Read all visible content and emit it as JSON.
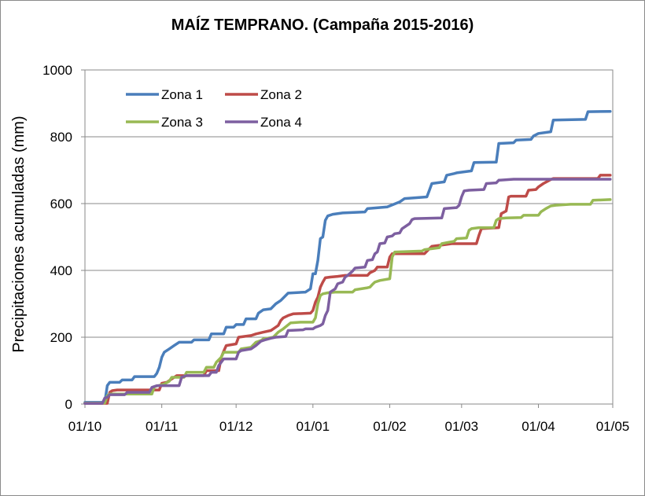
{
  "chart_data": {
    "type": "line",
    "title": "MAÍZ TEMPRANO. (Campaña 2015-2016)",
    "xlabel": "",
    "ylabel": "Precipitaciones acumuladas  (mm)",
    "ylim": [
      0,
      1000
    ],
    "yticks": [
      0,
      200,
      400,
      600,
      800,
      1000
    ],
    "xlim": [
      0,
      212
    ],
    "xticks": [
      {
        "label": "01/10",
        "day": 0
      },
      {
        "label": "01/11",
        "day": 31
      },
      {
        "label": "01/12",
        "day": 61
      },
      {
        "label": "01/01",
        "day": 92
      },
      {
        "label": "01/02",
        "day": 123
      },
      {
        "label": "01/03",
        "day": 152
      },
      {
        "label": "01/04",
        "day": 183
      },
      {
        "label": "01/05",
        "day": 213
      }
    ],
    "grid": "horizontal",
    "legend_position": "top-left",
    "series": [
      {
        "name": "Zona 1",
        "color": "#4a7ebb",
        "points": [
          [
            0,
            5
          ],
          [
            8,
            5
          ],
          [
            9,
            55
          ],
          [
            10,
            65
          ],
          [
            14,
            65
          ],
          [
            15,
            72
          ],
          [
            19,
            72
          ],
          [
            20,
            82
          ],
          [
            28,
            82
          ],
          [
            29,
            92
          ],
          [
            30,
            110
          ],
          [
            31,
            140
          ],
          [
            32,
            155
          ],
          [
            34,
            165
          ],
          [
            36,
            175
          ],
          [
            38,
            185
          ],
          [
            43,
            185
          ],
          [
            44,
            192
          ],
          [
            50,
            192
          ],
          [
            51,
            210
          ],
          [
            56,
            210
          ],
          [
            57,
            230
          ],
          [
            60,
            230
          ],
          [
            61,
            238
          ],
          [
            64,
            238
          ],
          [
            65,
            255
          ],
          [
            69,
            255
          ],
          [
            70,
            272
          ],
          [
            72,
            282
          ],
          [
            75,
            285
          ],
          [
            77,
            300
          ],
          [
            79,
            310
          ],
          [
            82,
            332
          ],
          [
            89,
            335
          ],
          [
            91,
            345
          ],
          [
            92,
            390
          ],
          [
            93,
            390
          ],
          [
            94,
            430
          ],
          [
            95,
            495
          ],
          [
            96,
            500
          ],
          [
            97,
            550
          ],
          [
            98,
            563
          ],
          [
            100,
            568
          ],
          [
            104,
            572
          ],
          [
            113,
            575
          ],
          [
            114,
            585
          ],
          [
            122,
            590
          ],
          [
            127,
            605
          ],
          [
            129,
            615
          ],
          [
            138,
            620
          ],
          [
            139,
            640
          ],
          [
            140,
            660
          ],
          [
            145,
            665
          ],
          [
            146,
            685
          ],
          [
            149,
            690
          ],
          [
            150,
            692
          ],
          [
            156,
            698
          ],
          [
            157,
            723
          ],
          [
            166,
            724
          ],
          [
            167,
            780
          ],
          [
            173,
            782
          ],
          [
            174,
            790
          ],
          [
            180,
            792
          ],
          [
            181,
            802
          ],
          [
            183,
            810
          ],
          [
            188,
            815
          ],
          [
            189,
            850
          ],
          [
            202,
            852
          ],
          [
            203,
            875
          ],
          [
            212,
            876
          ]
        ]
      },
      {
        "name": "Zona 2",
        "color": "#be4b48",
        "points": [
          [
            0,
            2
          ],
          [
            9,
            2
          ],
          [
            10,
            35
          ],
          [
            11,
            40
          ],
          [
            13,
            42
          ],
          [
            30,
            42
          ],
          [
            31,
            62
          ],
          [
            33,
            65
          ],
          [
            35,
            75
          ],
          [
            37,
            85
          ],
          [
            48,
            85
          ],
          [
            49,
            100
          ],
          [
            54,
            100
          ],
          [
            55,
            140
          ],
          [
            56,
            158
          ],
          [
            57,
            175
          ],
          [
            61,
            180
          ],
          [
            62,
            200
          ],
          [
            67,
            205
          ],
          [
            69,
            210
          ],
          [
            72,
            215
          ],
          [
            75,
            220
          ],
          [
            76,
            225
          ],
          [
            78,
            235
          ],
          [
            79,
            250
          ],
          [
            80,
            258
          ],
          [
            82,
            265
          ],
          [
            84,
            270
          ],
          [
            91,
            272
          ],
          [
            92,
            280
          ],
          [
            93,
            305
          ],
          [
            94,
            320
          ],
          [
            95,
            350
          ],
          [
            96,
            365
          ],
          [
            97,
            378
          ],
          [
            99,
            380
          ],
          [
            102,
            382
          ],
          [
            105,
            385
          ],
          [
            114,
            385
          ],
          [
            115,
            393
          ],
          [
            117,
            400
          ],
          [
            118,
            410
          ],
          [
            122,
            410
          ],
          [
            123,
            440
          ],
          [
            124,
            450
          ],
          [
            137,
            450
          ],
          [
            139,
            465
          ],
          [
            140,
            472
          ],
          [
            146,
            478
          ],
          [
            148,
            480
          ],
          [
            158,
            480
          ],
          [
            159,
            505
          ],
          [
            160,
            525
          ],
          [
            167,
            528
          ],
          [
            168,
            570
          ],
          [
            170,
            578
          ],
          [
            171,
            620
          ],
          [
            172,
            622
          ],
          [
            178,
            622
          ],
          [
            179,
            640
          ],
          [
            182,
            642
          ],
          [
            183,
            650
          ],
          [
            185,
            660
          ],
          [
            187,
            668
          ],
          [
            188,
            672
          ],
          [
            189,
            675
          ],
          [
            207,
            675
          ],
          [
            208,
            685
          ],
          [
            212,
            685
          ]
        ]
      },
      {
        "name": "Zona 3",
        "color": "#98b954",
        "points": [
          [
            0,
            3
          ],
          [
            8,
            3
          ],
          [
            9,
            25
          ],
          [
            10,
            30
          ],
          [
            27,
            30
          ],
          [
            28,
            52
          ],
          [
            31,
            58
          ],
          [
            32,
            60
          ],
          [
            34,
            68
          ],
          [
            35,
            80
          ],
          [
            40,
            80
          ],
          [
            41,
            95
          ],
          [
            48,
            95
          ],
          [
            49,
            110
          ],
          [
            52,
            110
          ],
          [
            53,
            125
          ],
          [
            55,
            140
          ],
          [
            56,
            155
          ],
          [
            62,
            155
          ],
          [
            63,
            165
          ],
          [
            67,
            170
          ],
          [
            69,
            185
          ],
          [
            71,
            190
          ],
          [
            72,
            195
          ],
          [
            76,
            200
          ],
          [
            78,
            215
          ],
          [
            80,
            225
          ],
          [
            83,
            243
          ],
          [
            87,
            245
          ],
          [
            92,
            245
          ],
          [
            93,
            258
          ],
          [
            94,
            300
          ],
          [
            95,
            325
          ],
          [
            96,
            330
          ],
          [
            98,
            333
          ],
          [
            101,
            335
          ],
          [
            108,
            335
          ],
          [
            109,
            342
          ],
          [
            114,
            348
          ],
          [
            115,
            350
          ],
          [
            116,
            358
          ],
          [
            117,
            365
          ],
          [
            119,
            370
          ],
          [
            123,
            375
          ],
          [
            124,
            440
          ],
          [
            125,
            455
          ],
          [
            136,
            458
          ],
          [
            137,
            462
          ],
          [
            143,
            468
          ],
          [
            144,
            480
          ],
          [
            146,
            483
          ],
          [
            149,
            487
          ],
          [
            150,
            495
          ],
          [
            154,
            497
          ],
          [
            155,
            520
          ],
          [
            156,
            525
          ],
          [
            159,
            528
          ],
          [
            165,
            528
          ],
          [
            166,
            550
          ],
          [
            167,
            555
          ],
          [
            170,
            557
          ],
          [
            176,
            558
          ],
          [
            177,
            565
          ],
          [
            183,
            565
          ],
          [
            184,
            575
          ],
          [
            186,
            585
          ],
          [
            188,
            593
          ],
          [
            190,
            595
          ],
          [
            196,
            598
          ],
          [
            204,
            598
          ],
          [
            205,
            610
          ],
          [
            212,
            612
          ]
        ]
      },
      {
        "name": "Zona 4",
        "color": "#7d5fa0",
        "points": [
          [
            0,
            2
          ],
          [
            7,
            2
          ],
          [
            8,
            18
          ],
          [
            9,
            20
          ],
          [
            10,
            28
          ],
          [
            16,
            28
          ],
          [
            17,
            35
          ],
          [
            26,
            35
          ],
          [
            27,
            50
          ],
          [
            29,
            55
          ],
          [
            38,
            55
          ],
          [
            39,
            80
          ],
          [
            41,
            85
          ],
          [
            50,
            85
          ],
          [
            51,
            95
          ],
          [
            53,
            95
          ],
          [
            54,
            115
          ],
          [
            56,
            135
          ],
          [
            61,
            135
          ],
          [
            62,
            155
          ],
          [
            63,
            160
          ],
          [
            67,
            165
          ],
          [
            69,
            175
          ],
          [
            71,
            188
          ],
          [
            73,
            193
          ],
          [
            75,
            197
          ],
          [
            77,
            200
          ],
          [
            81,
            202
          ],
          [
            82,
            220
          ],
          [
            88,
            222
          ],
          [
            89,
            225
          ],
          [
            92,
            225
          ],
          [
            93,
            230
          ],
          [
            95,
            235
          ],
          [
            96,
            240
          ],
          [
            97,
            265
          ],
          [
            98,
            280
          ],
          [
            99,
            335
          ],
          [
            101,
            345
          ],
          [
            102,
            360
          ],
          [
            104,
            365
          ],
          [
            105,
            380
          ],
          [
            106,
            385
          ],
          [
            108,
            398
          ],
          [
            109,
            407
          ],
          [
            113,
            410
          ],
          [
            114,
            430
          ],
          [
            116,
            432
          ],
          [
            117,
            450
          ],
          [
            118,
            455
          ],
          [
            119,
            480
          ],
          [
            121,
            482
          ],
          [
            122,
            500
          ],
          [
            124,
            503
          ],
          [
            125,
            510
          ],
          [
            127,
            512
          ],
          [
            128,
            525
          ],
          [
            131,
            540
          ],
          [
            132,
            552
          ],
          [
            133,
            555
          ],
          [
            144,
            557
          ],
          [
            145,
            585
          ],
          [
            150,
            588
          ],
          [
            151,
            595
          ],
          [
            152,
            620
          ],
          [
            153,
            638
          ],
          [
            155,
            640
          ],
          [
            161,
            642
          ],
          [
            162,
            660
          ],
          [
            166,
            662
          ],
          [
            167,
            670
          ],
          [
            173,
            673
          ],
          [
            212,
            673
          ]
        ]
      }
    ]
  }
}
